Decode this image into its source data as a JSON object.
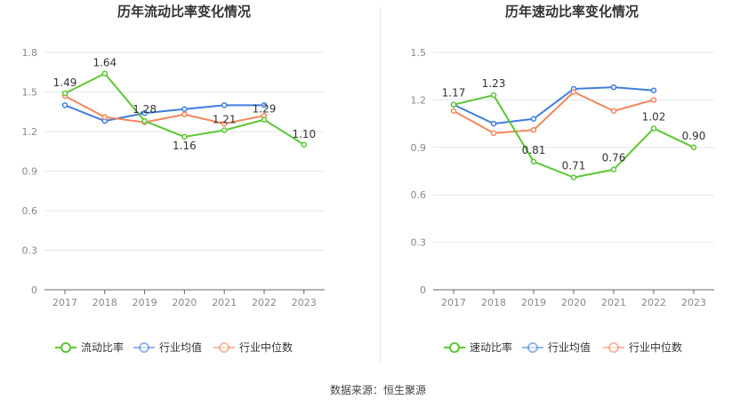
{
  "chart_data": [
    {
      "type": "line",
      "title": "历年流动比率变化情况",
      "categories": [
        "2017",
        "2018",
        "2019",
        "2020",
        "2021",
        "2022",
        "2023"
      ],
      "ylim": [
        0,
        1.8
      ],
      "yticks": [
        "0",
        "0.3",
        "0.6",
        "0.9",
        "1.2",
        "1.5",
        "1.8"
      ],
      "legend_position": "bottom",
      "series": [
        {
          "name": "流动比率",
          "color": "#5cc732",
          "values": [
            1.49,
            1.64,
            1.28,
            1.16,
            1.21,
            1.29,
            1.1
          ],
          "labels": [
            "1.49",
            "1.64",
            "1.28",
            "1.16",
            "1.21",
            "1.29",
            "1.10"
          ]
        },
        {
          "name": "行业均值",
          "color": "#3f7de0",
          "values": [
            1.4,
            1.28,
            1.34,
            1.37,
            1.4,
            1.4,
            null
          ]
        },
        {
          "name": "行业中位数",
          "color": "#f2875c",
          "values": [
            1.47,
            1.31,
            1.27,
            1.33,
            1.26,
            1.32,
            null
          ]
        }
      ]
    },
    {
      "type": "line",
      "title": "历年速动比率变化情况",
      "categories": [
        "2017",
        "2018",
        "2019",
        "2020",
        "2021",
        "2022",
        "2023"
      ],
      "ylim": [
        0,
        1.5
      ],
      "yticks": [
        "0",
        "0.3",
        "0.6",
        "0.9",
        "1.2",
        "1.5"
      ],
      "legend_position": "bottom",
      "series": [
        {
          "name": "速动比率",
          "color": "#5cc732",
          "values": [
            1.17,
            1.23,
            0.81,
            0.71,
            0.76,
            1.02,
            0.9
          ],
          "labels": [
            "1.17",
            "1.23",
            "0.81",
            "0.71",
            "0.76",
            "1.02",
            "0.90"
          ]
        },
        {
          "name": "行业均值",
          "color": "#3f7de0",
          "values": [
            1.17,
            1.05,
            1.08,
            1.27,
            1.28,
            1.26,
            null
          ]
        },
        {
          "name": "行业中位数",
          "color": "#f2875c",
          "values": [
            1.13,
            0.99,
            1.01,
            1.25,
            1.13,
            1.2,
            null
          ]
        }
      ]
    }
  ],
  "footer": "数据来源：恒生聚源"
}
